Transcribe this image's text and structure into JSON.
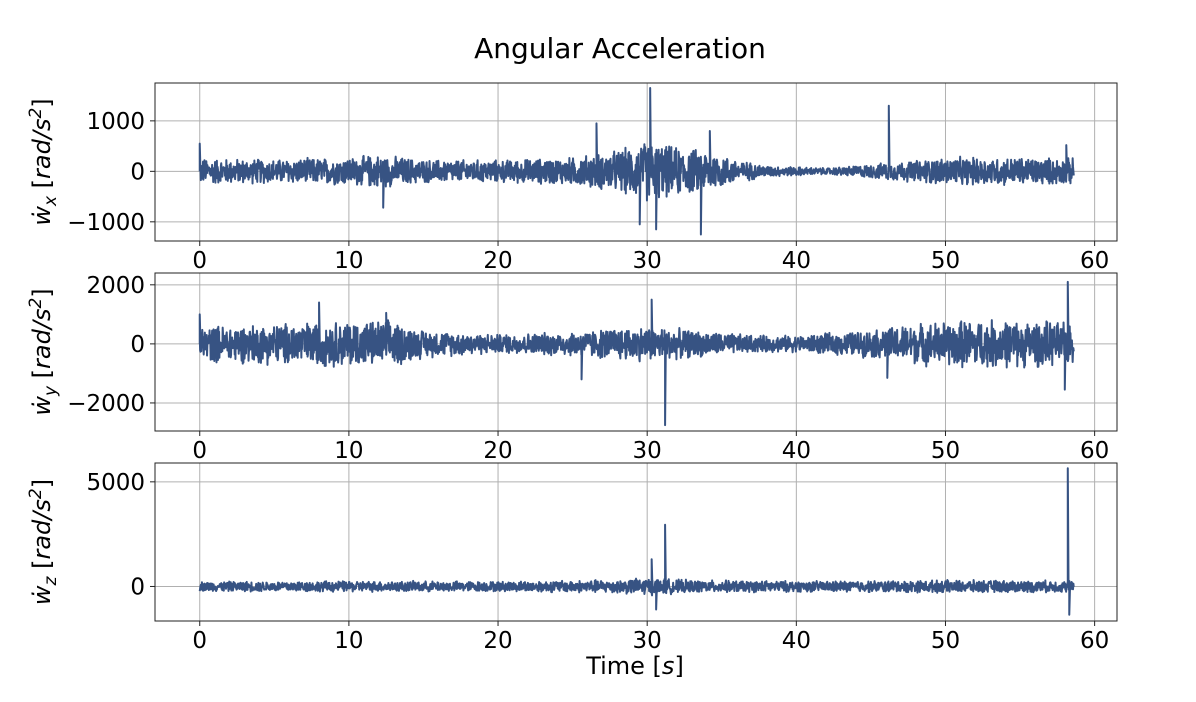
{
  "chart_data": {
    "title": "Angular Acceleration",
    "xlabel": "Time [s]",
    "line_color": "#375383",
    "grid": true,
    "duration_s": 58.6,
    "panels": [
      {
        "type": "line",
        "ylabel": "ẇx [rad/s²]",
        "ylabel_base": "ẇ",
        "ylabel_sub": "x",
        "ylabel_unit": "[rad/s²]",
        "xlim": [
          -3,
          61.5
        ],
        "ylim": [
          -1380,
          1750
        ],
        "x_ticks": [
          0,
          10,
          20,
          30,
          40,
          50,
          60
        ],
        "x_tick_labels": [
          "0",
          "10",
          "20",
          "30",
          "40",
          "50",
          "60"
        ],
        "y_ticks": [
          -1000,
          0,
          1000
        ],
        "y_tick_labels": [
          "−1000",
          "0",
          "1000"
        ],
        "envelope": [
          {
            "t": 0,
            "a": 280
          },
          {
            "t": 5,
            "a": 260
          },
          {
            "t": 10,
            "a": 300
          },
          {
            "t": 12,
            "a": 360
          },
          {
            "t": 15,
            "a": 250
          },
          {
            "t": 20,
            "a": 240
          },
          {
            "t": 25,
            "a": 300
          },
          {
            "t": 28,
            "a": 450
          },
          {
            "t": 30,
            "a": 650
          },
          {
            "t": 32,
            "a": 520
          },
          {
            "t": 34,
            "a": 450
          },
          {
            "t": 36,
            "a": 250
          },
          {
            "t": 38,
            "a": 120
          },
          {
            "t": 42,
            "a": 70
          },
          {
            "t": 45,
            "a": 150
          },
          {
            "t": 50,
            "a": 300
          },
          {
            "t": 55,
            "a": 300
          },
          {
            "t": 58.6,
            "a": 280
          }
        ],
        "spikes": [
          {
            "t": 0.0,
            "v": 550
          },
          {
            "t": 12.3,
            "v": -720
          },
          {
            "t": 26.6,
            "v": 950
          },
          {
            "t": 29.5,
            "v": -1050
          },
          {
            "t": 30.2,
            "v": 1650
          },
          {
            "t": 30.6,
            "v": -1150
          },
          {
            "t": 33.6,
            "v": -1250
          },
          {
            "t": 34.2,
            "v": 800
          },
          {
            "t": 46.2,
            "v": 1300
          },
          {
            "t": 58.1,
            "v": 520
          }
        ]
      },
      {
        "type": "line",
        "ylabel": "ẇy [rad/s²]",
        "ylabel_base": "ẇ",
        "ylabel_sub": "y",
        "ylabel_unit": "[rad/s²]",
        "xlim": [
          -3,
          61.5
        ],
        "ylim": [
          -2950,
          2400
        ],
        "x_ticks": [
          0,
          10,
          20,
          30,
          40,
          50,
          60
        ],
        "x_tick_labels": [
          "0",
          "10",
          "20",
          "30",
          "40",
          "50",
          "60"
        ],
        "y_ticks": [
          -2000,
          0,
          2000
        ],
        "y_tick_labels": [
          "−2000",
          "0",
          "2000"
        ],
        "envelope": [
          {
            "t": 0,
            "a": 650
          },
          {
            "t": 5,
            "a": 750
          },
          {
            "t": 10,
            "a": 850
          },
          {
            "t": 13,
            "a": 850
          },
          {
            "t": 15,
            "a": 500
          },
          {
            "t": 20,
            "a": 350
          },
          {
            "t": 25,
            "a": 450
          },
          {
            "t": 28,
            "a": 600
          },
          {
            "t": 30,
            "a": 650
          },
          {
            "t": 33,
            "a": 500
          },
          {
            "t": 37,
            "a": 320
          },
          {
            "t": 40,
            "a": 300
          },
          {
            "t": 45,
            "a": 500
          },
          {
            "t": 48,
            "a": 750
          },
          {
            "t": 52,
            "a": 900
          },
          {
            "t": 56,
            "a": 850
          },
          {
            "t": 58.6,
            "a": 750
          }
        ],
        "spikes": [
          {
            "t": 0.0,
            "v": 1000
          },
          {
            "t": 8.0,
            "v": 1400
          },
          {
            "t": 12.5,
            "v": 1050
          },
          {
            "t": 25.6,
            "v": -1200
          },
          {
            "t": 30.3,
            "v": 1500
          },
          {
            "t": 31.2,
            "v": -2750
          },
          {
            "t": 46.1,
            "v": -1150
          },
          {
            "t": 58.2,
            "v": 2100
          },
          {
            "t": 58.0,
            "v": -1550
          }
        ]
      },
      {
        "type": "line",
        "ylabel": "ẇz [rad/s²]",
        "ylabel_base": "ẇ",
        "ylabel_sub": "z",
        "ylabel_unit": "[rad/s²]",
        "xlim": [
          -3,
          61.5
        ],
        "ylim": [
          -1650,
          5900
        ],
        "x_ticks": [
          0,
          10,
          20,
          30,
          40,
          50,
          60
        ],
        "x_tick_labels": [
          "0",
          "10",
          "20",
          "30",
          "40",
          "50",
          "60"
        ],
        "y_ticks": [
          0,
          5000
        ],
        "y_tick_labels": [
          "0",
          "5000"
        ],
        "envelope": [
          {
            "t": 0,
            "a": 250
          },
          {
            "t": 10,
            "a": 280
          },
          {
            "t": 20,
            "a": 260
          },
          {
            "t": 28,
            "a": 350
          },
          {
            "t": 30,
            "a": 450
          },
          {
            "t": 33,
            "a": 320
          },
          {
            "t": 40,
            "a": 280
          },
          {
            "t": 50,
            "a": 320
          },
          {
            "t": 58.6,
            "a": 300
          }
        ],
        "spikes": [
          {
            "t": 30.3,
            "v": 1300
          },
          {
            "t": 31.2,
            "v": 2950
          },
          {
            "t": 30.6,
            "v": -1100
          },
          {
            "t": 58.2,
            "v": 5650
          },
          {
            "t": 58.3,
            "v": -1350
          }
        ]
      }
    ]
  }
}
